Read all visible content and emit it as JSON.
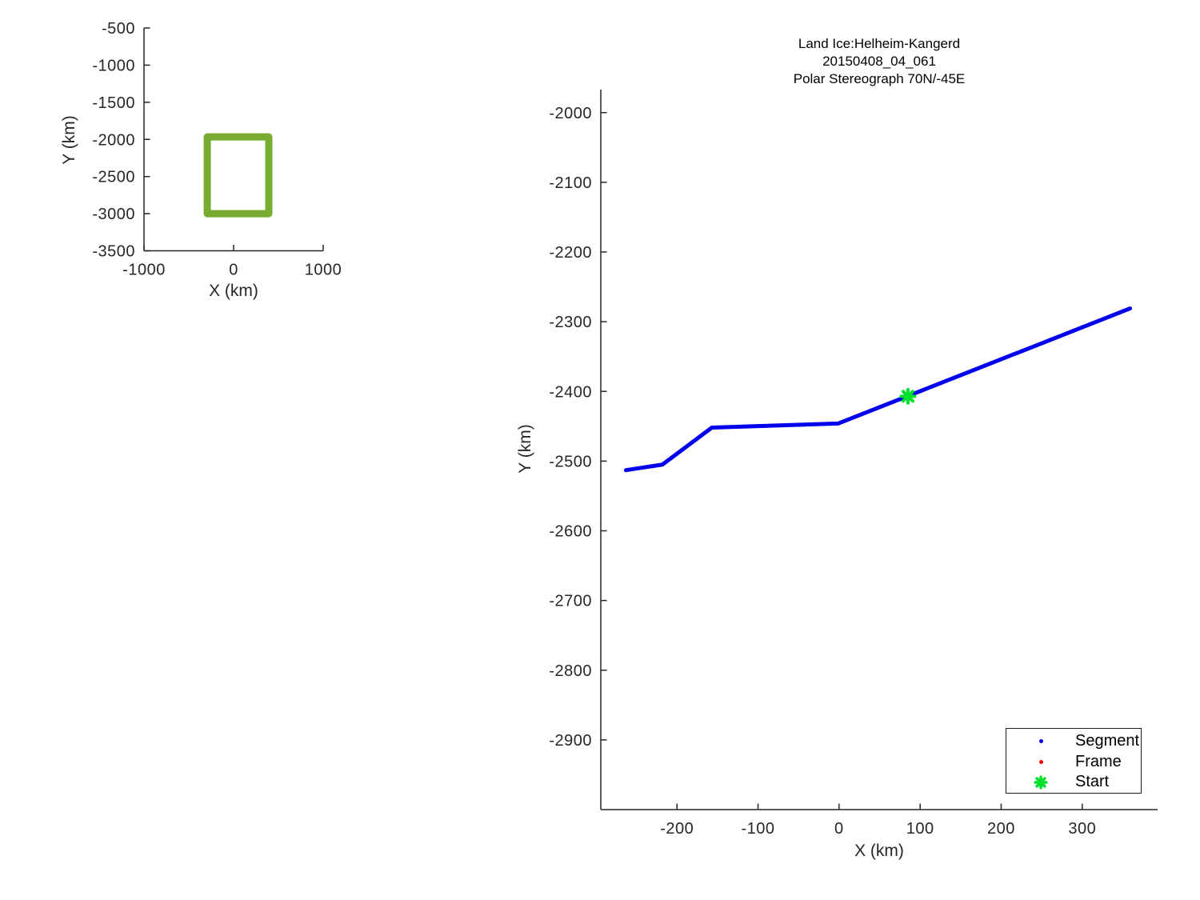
{
  "figure": {
    "background": "#ffffff",
    "axis_color": "#262626",
    "tick_text_color": "#262626",
    "title_color": "#000000"
  },
  "chart_data": [
    {
      "type": "line",
      "name": "overview-map-plot",
      "title": "",
      "xlabel": "X (km)",
      "ylabel": "Y (km)",
      "xlim": [
        -1000,
        1000
      ],
      "ylim": [
        -3500,
        -500
      ],
      "xticks": [
        -1000,
        0,
        1000
      ],
      "yticks": [
        -500,
        -1000,
        -1500,
        -2000,
        -2500,
        -3000,
        -3500
      ],
      "grid": false,
      "legend_position": "none",
      "series": [
        {
          "name": "coverage-outline",
          "type": "rect-outline",
          "color": "#77AC30",
          "line_width": 9,
          "x": [
            -294,
            393
          ],
          "y": [
            -3000,
            -1967
          ]
        }
      ]
    },
    {
      "type": "line",
      "name": "ground-track-plot",
      "title_lines": [
        "Land Ice:Helheim-Kangerd",
        "20150408_04_061",
        "Polar Stereograph 70N/-45E"
      ],
      "xlabel": "X (km)",
      "ylabel": "Y (km)",
      "xlim": [
        -294,
        393
      ],
      "ylim": [
        -3000,
        -1967
      ],
      "xticks": [
        -200,
        -100,
        0,
        100,
        200,
        300
      ],
      "yticks": [
        -2000,
        -2100,
        -2200,
        -2300,
        -2400,
        -2500,
        -2600,
        -2700,
        -2800,
        -2900
      ],
      "grid": false,
      "legend_position": "bottom-right",
      "series": [
        {
          "name": "Segment",
          "type": "line",
          "color": "#0000EE",
          "line_width": 5,
          "points": [
            [
              -263,
              -2513
            ],
            [
              -218,
              -2505
            ],
            [
              -157,
              -2452
            ],
            [
              -1,
              -2446
            ],
            [
              359,
              -2281
            ]
          ]
        },
        {
          "name": "Start",
          "type": "asterisk-marker",
          "color": "#00E02C",
          "size": 17,
          "line_width": 4,
          "points": [
            [
              85,
              -2407
            ]
          ]
        }
      ],
      "legend": {
        "items": [
          {
            "label": "Segment",
            "marker": "dot",
            "color": "#0000EE"
          },
          {
            "label": "Frame",
            "marker": "dot",
            "color": "#EE0000"
          },
          {
            "label": "Start",
            "marker": "asterisk",
            "color": "#00E02C"
          }
        ]
      }
    }
  ]
}
